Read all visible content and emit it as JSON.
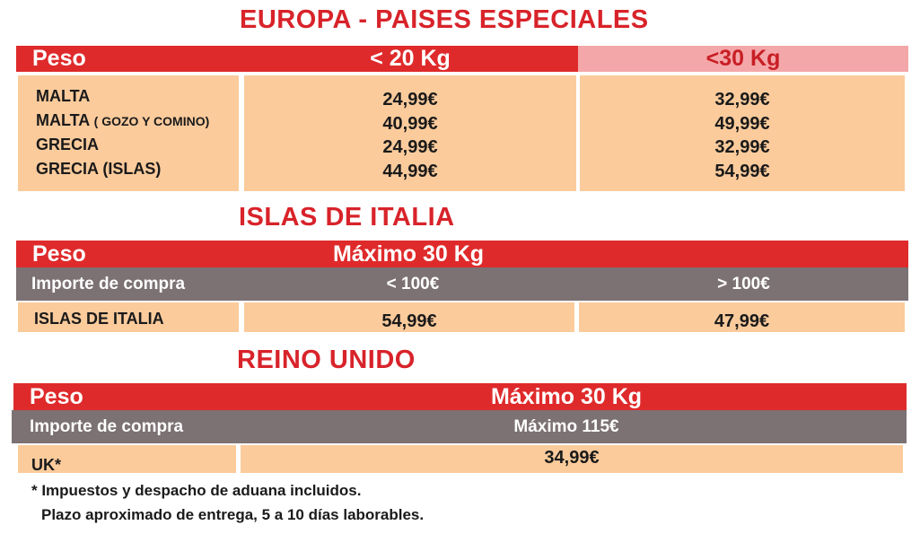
{
  "section1": {
    "title": "EUROPA - PAISES ESPECIALES",
    "header": {
      "peso": "Peso",
      "col1": "< 20 Kg",
      "col2": "<30 Kg"
    },
    "rows": [
      {
        "country": "MALTA",
        "note": "",
        "v20": "24,99€",
        "v30": "32,99€"
      },
      {
        "country": "MALTA",
        "note": "( GOZO Y COMINO)",
        "v20": "40,99€",
        "v30": "49,99€"
      },
      {
        "country": "GRECIA",
        "note": "",
        "v20": "24,99€",
        "v30": "32,99€"
      },
      {
        "country": "GRECIA (ISLAS)",
        "note": "",
        "v20": "44,99€",
        "v30": "54,99€"
      }
    ]
  },
  "section2": {
    "title": "ISLAS DE ITALIA",
    "header": {
      "peso": "Peso",
      "max": "Máximo 30 Kg"
    },
    "sub": {
      "label": "Importe de compra",
      "col1": "< 100€",
      "col2": "> 100€"
    },
    "row": {
      "label": "ISLAS DE ITALIA",
      "v1": "54,99€",
      "v2": "47,99€"
    }
  },
  "section3": {
    "title": "REINO UNIDO",
    "header": {
      "peso": "Peso",
      "max": "Máximo 30 Kg"
    },
    "sub": {
      "label": "Importe de compra",
      "max": "Máximo 115€"
    },
    "row": {
      "label": "UK*",
      "v": "34,99€"
    }
  },
  "footnote": {
    "line1": "* Impuestos y despacho de aduana incluidos.",
    "line2": "Plazo aproximado de entrega, 5 a 10 días laborables."
  }
}
